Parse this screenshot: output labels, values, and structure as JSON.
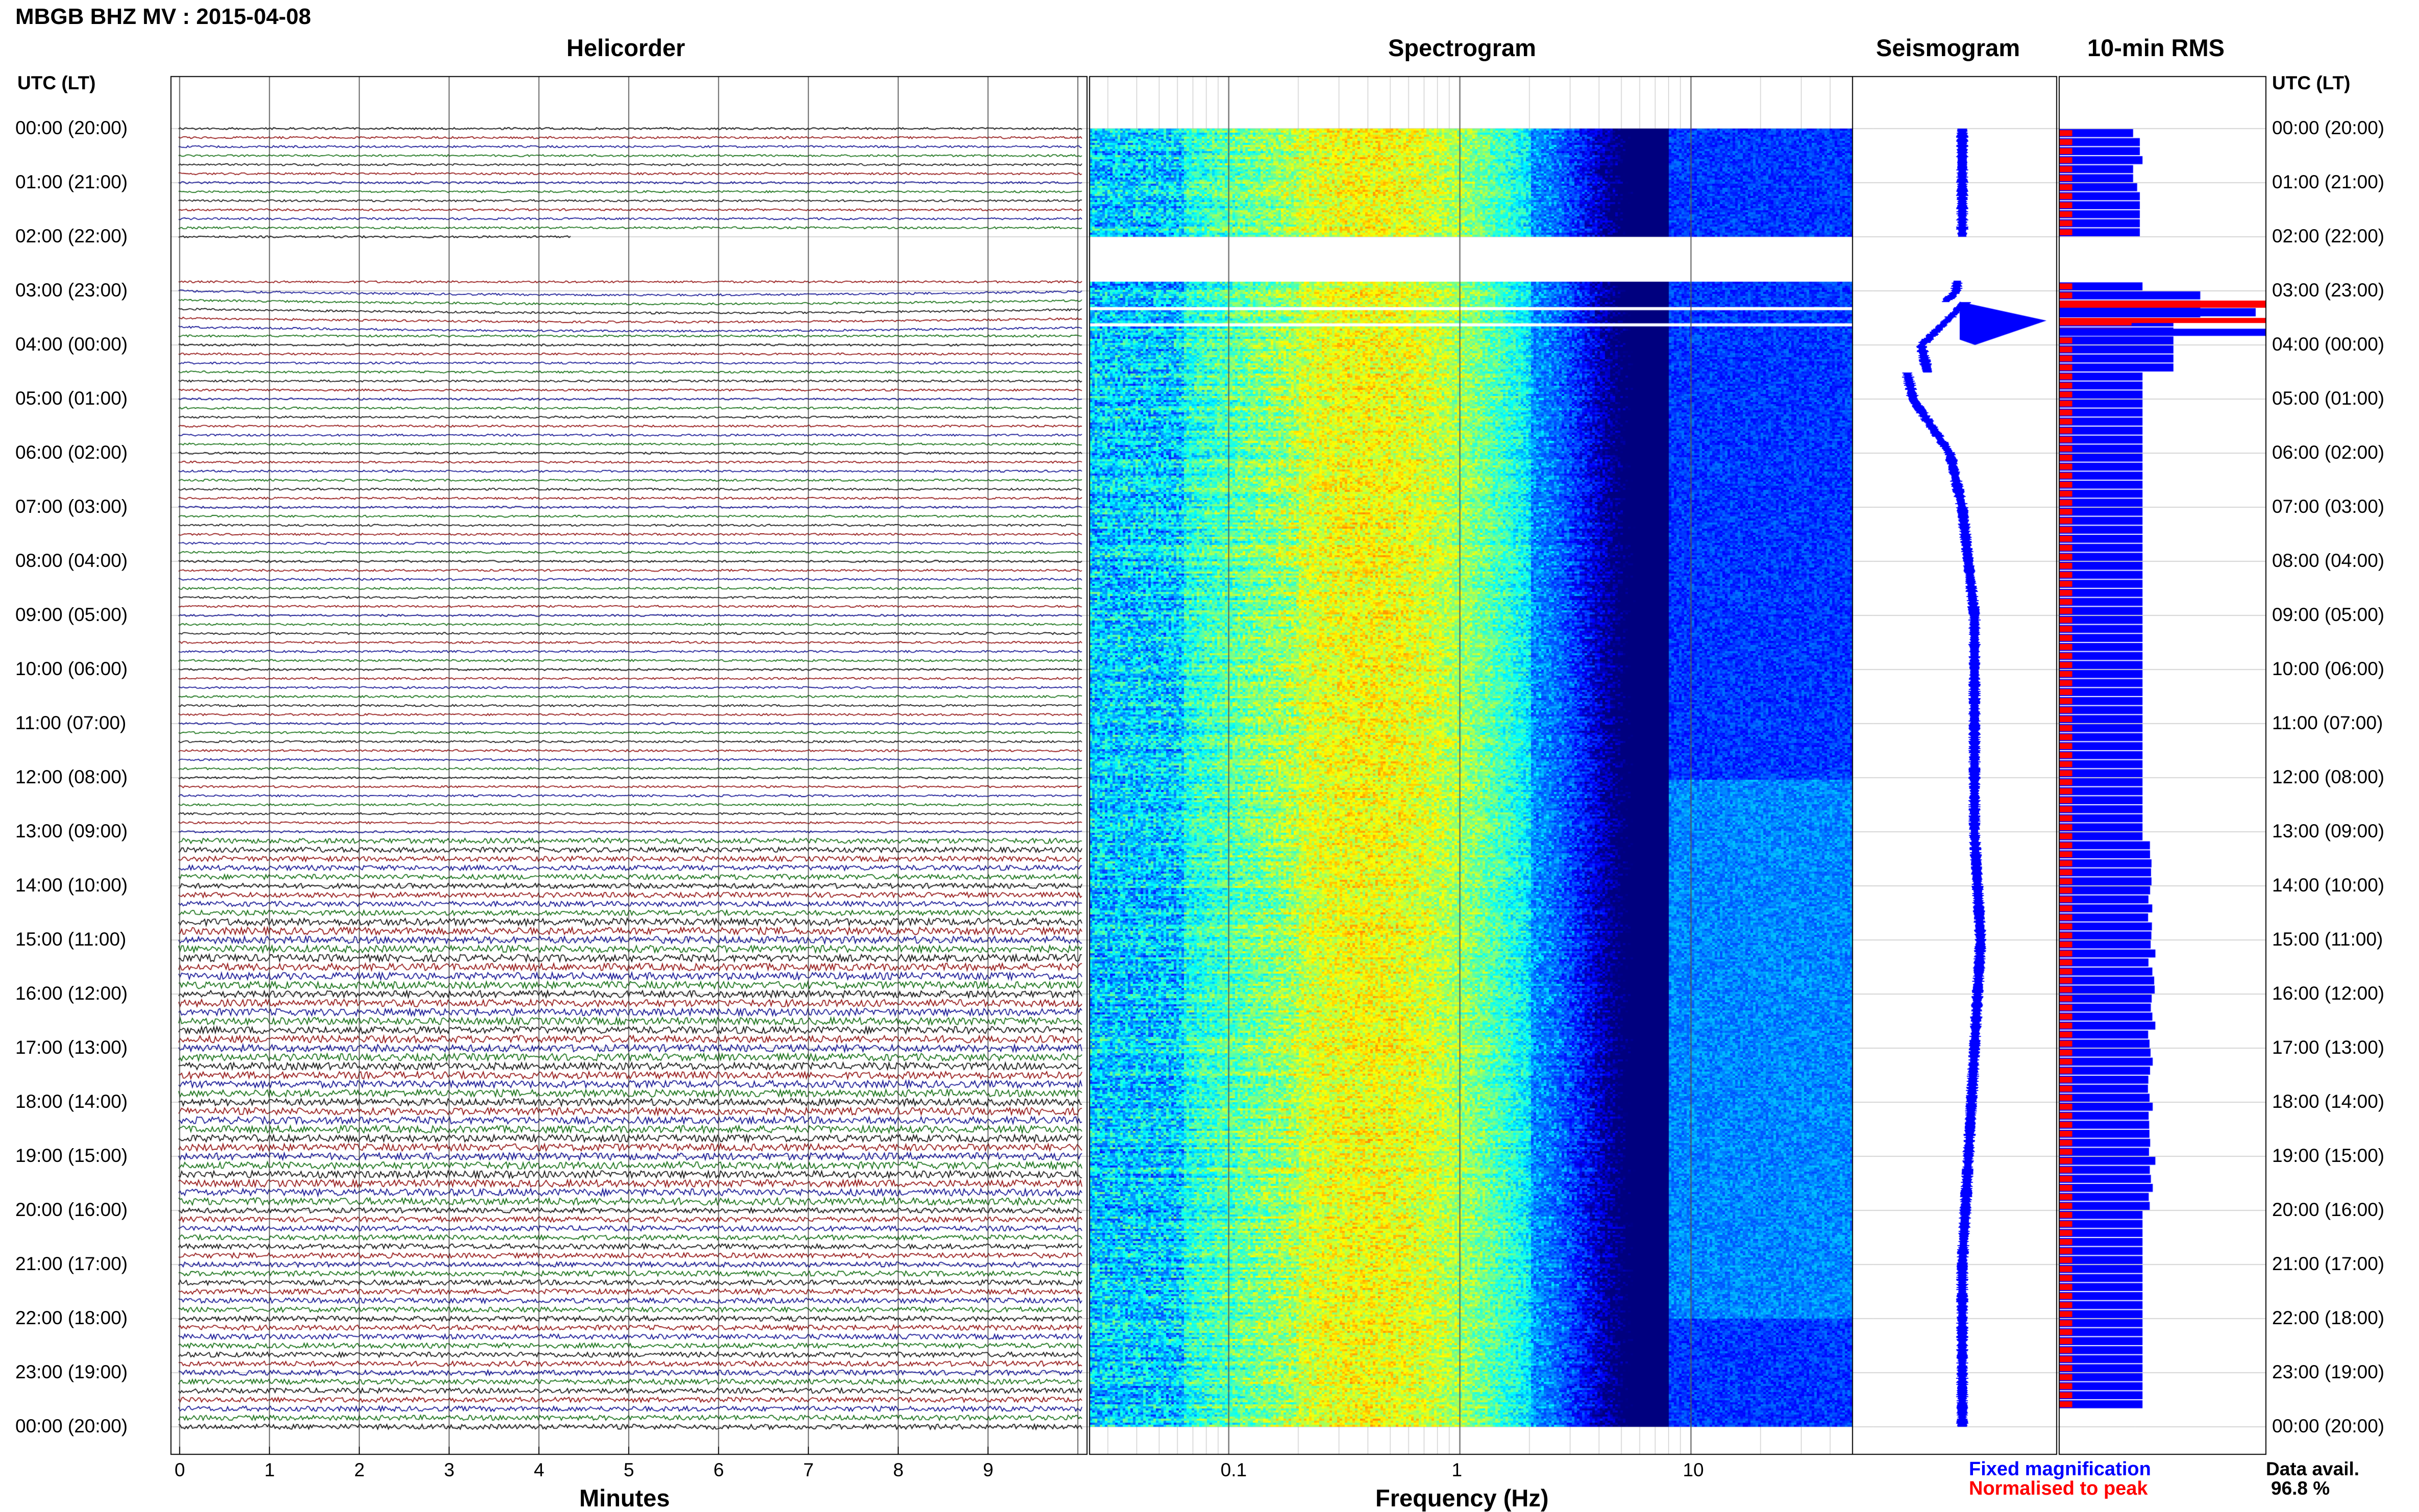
{
  "header": {
    "station_title": "MBGB BHZ MV : 2015-04-08",
    "utc_label_left": "UTC (LT)",
    "utc_label_right": "UTC (LT)"
  },
  "panels": {
    "helicorder_title": "Helicorder",
    "spectrogram_title": "Spectrogram",
    "seismogram_title": "Seismogram",
    "rms_title": "10-min RMS"
  },
  "axes": {
    "minutes_label": "Minutes",
    "frequency_label": "Frequency (Hz)"
  },
  "footer": {
    "legend_fixed": "Fixed magnification",
    "legend_normalised": "Normalised to peak",
    "data_avail_label": "Data avail.",
    "data_avail_value": "96.8 %"
  },
  "colors": {
    "trace_colors": [
      "#000000",
      "#8b0000",
      "#00008b",
      "#006400"
    ],
    "rms_fixed": "#0000ff",
    "rms_normalised": "#ff0000",
    "seismogram": "#0000ff",
    "legend_fixed": "#0000ff",
    "legend_normalised": "#ff0000"
  },
  "chart_data": [
    {
      "type": "line",
      "name": "helicorder",
      "title": "Helicorder",
      "xlabel": "Minutes",
      "x_ticks": [
        "0",
        "1",
        "2",
        "3",
        "4",
        "5",
        "6",
        "7",
        "8",
        "9"
      ],
      "xlim": [
        0,
        10
      ],
      "time_labels": [
        "00:00 (20:00)",
        "01:00 (21:00)",
        "02:00 (22:00)",
        "03:00 (23:00)",
        "04:00 (00:00)",
        "05:00 (01:00)",
        "06:00 (02:00)",
        "07:00 (03:00)",
        "08:00 (04:00)",
        "09:00 (05:00)",
        "10:00 (06:00)",
        "11:00 (07:00)",
        "12:00 (08:00)",
        "13:00 (09:00)",
        "14:00 (10:00)",
        "15:00 (11:00)",
        "16:00 (12:00)",
        "17:00 (13:00)",
        "18:00 (14:00)",
        "19:00 (15:00)",
        "20:00 (16:00)",
        "21:00 (17:00)",
        "22:00 (18:00)",
        "23:00 (19:00)",
        "00:00 (20:00)"
      ],
      "traces_per_hour": 6,
      "gap_hours": [
        2.0,
        2.8
      ]
    },
    {
      "type": "heatmap",
      "name": "spectrogram",
      "title": "Spectrogram",
      "xlabel": "Frequency (Hz)",
      "x_scale": "log",
      "x_ticks": [
        "0.1",
        "1",
        "10"
      ],
      "xlim": [
        0.025,
        50
      ],
      "peak_frequency_hz": 0.4,
      "gap_hours": [
        2.0,
        2.8
      ]
    },
    {
      "type": "line",
      "name": "seismogram",
      "title": "Seismogram",
      "amplitude_profile": [
        1.0,
        1.0,
        1.0,
        1.1,
        2.0,
        1.8,
        1.2,
        1.0,
        0.9,
        0.8,
        0.8,
        0.8,
        0.8,
        0.8,
        0.75,
        0.7,
        0.75,
        0.8,
        0.85,
        0.9,
        0.95,
        1.0,
        1.0,
        1.0,
        1.0
      ]
    },
    {
      "type": "bar",
      "name": "rms",
      "title": "10-min RMS",
      "series": [
        {
          "name": "Fixed magnification",
          "values": [
            0.55,
            0.6,
            0.6,
            0.62,
            0.55,
            0.55,
            0.58,
            0.6,
            0.6,
            0.6,
            0.6,
            0.6,
            0.62,
            0.58,
            0.6,
            0.6,
            0.6,
            0.62,
            0.6,
            0.62,
            0.6,
            0.6,
            0.62,
            0.6,
            0.6,
            0.62,
            0.62,
            0.62,
            0.62,
            0.62,
            0.62,
            0.62,
            0.62,
            0.62,
            0.62,
            0.62,
            0.62,
            0.62,
            0.62,
            0.62,
            0.62,
            0.62,
            0.62,
            0.62,
            0.62,
            0.62,
            0.62,
            0.62,
            0.62,
            0.62,
            0.62,
            0.62,
            0.62,
            0.62,
            0.62,
            0.62,
            0.62,
            0.62,
            0.62,
            0.62,
            0.62,
            0.62,
            0.62,
            0.62,
            0.62,
            0.62,
            0.62,
            0.62,
            0.62,
            0.62,
            0.62,
            0.62,
            0.62,
            0.62,
            0.62,
            0.62,
            0.62,
            0.62,
            0.62,
            0.62,
            0.62,
            0.62,
            0.62,
            0.62,
            0.62,
            0.62,
            0.62,
            0.62,
            0.62,
            0.62,
            0.62,
            0.62,
            0.62,
            0.62,
            0.62,
            0.62,
            0.62,
            0.62,
            0.62,
            0.62,
            0.62,
            0.62,
            0.62,
            0.62,
            0.62,
            0.62,
            0.62,
            0.62,
            0.62,
            0.62,
            0.62,
            0.62,
            0.62,
            0.62,
            0.62,
            0.62,
            0.62,
            0.62,
            0.62,
            0.62,
            0.62,
            0.62,
            0.62,
            0.62,
            0.62,
            0.62,
            0.62,
            0.62,
            0.62,
            0.62,
            0.62,
            0.62,
            0.62,
            0.62,
            0.62,
            0.62,
            0.62,
            0.62,
            0.62,
            0.62,
            0.62,
            0.62
          ]
        },
        {
          "name": "Normalised to peak",
          "values": [
            0.18,
            0.18,
            0.18,
            0.18,
            0.18,
            0.18,
            0.18,
            0.18,
            0.18,
            0.18,
            0.18,
            0.18,
            0.18,
            0.18,
            0.18,
            0.18,
            0.18,
            0.18,
            0.18,
            0.18,
            0.18,
            0.18,
            0.18,
            0.18,
            0.18,
            0.18,
            0.18,
            0.18,
            0.18,
            0.18,
            0.18,
            0.18,
            0.18,
            0.18,
            0.18,
            0.18,
            0.18,
            0.18,
            0.18,
            0.18,
            0.18,
            0.18,
            0.18,
            0.18,
            0.18,
            0.18,
            0.18,
            0.18,
            0.18,
            0.18,
            0.18,
            0.18,
            0.18,
            0.18,
            0.18,
            0.18,
            0.18,
            0.18,
            0.18,
            0.18,
            0.18,
            0.18,
            0.18,
            0.18,
            0.18,
            0.18,
            0.18,
            0.18,
            0.18,
            0.18,
            0.18,
            0.18,
            0.18,
            0.18,
            0.18,
            0.18,
            0.18,
            0.18,
            0.18,
            0.18,
            0.18,
            0.18,
            0.18,
            0.18,
            0.18,
            0.18,
            0.18,
            0.18,
            0.18,
            0.18,
            0.18,
            0.18,
            0.18,
            0.18,
            0.18,
            0.18,
            0.18,
            0.18,
            0.18,
            0.18,
            0.18,
            0.18,
            0.18,
            0.18,
            0.18,
            0.18,
            0.18,
            0.18,
            0.18,
            0.18,
            0.18,
            0.18,
            0.18,
            0.18,
            0.18,
            0.18,
            0.18,
            0.18,
            0.18,
            0.18,
            0.18,
            0.18,
            0.18,
            0.18,
            0.18,
            0.18,
            0.18,
            0.18,
            0.18,
            0.18,
            0.18,
            0.18,
            0.18,
            0.18,
            0.18,
            0.18,
            0.18,
            0.18,
            0.18,
            0.18,
            0.18,
            0.18,
            0.18,
            0.18
          ]
        }
      ]
    }
  ]
}
